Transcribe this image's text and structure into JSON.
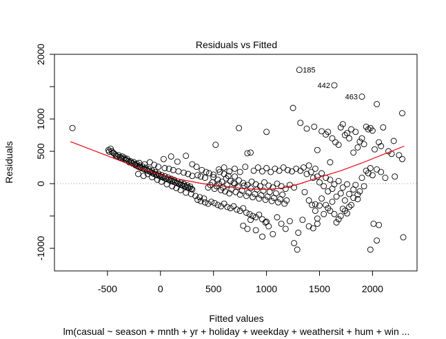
{
  "chart_data": {
    "type": "scatter",
    "title": "Residuals vs Fitted",
    "xlabel": "Fitted values",
    "ylabel": "Residuals",
    "subtitle": "lm(casual ~ season + mnth + yr + holiday + weekday + weathersit + hum + win ...",
    "xlim": [
      -1000,
      2420
    ],
    "ylim": [
      -1350,
      2000
    ],
    "x_ticks": [
      -500,
      0,
      500,
      1000,
      1500,
      2000
    ],
    "y_ticks": [
      -1000,
      -500,
      0,
      500,
      1000,
      1500,
      2000
    ],
    "y_tick_labels": [
      "-1000",
      "",
      "0",
      "500",
      "1000",
      "",
      "2000"
    ],
    "reference_line": 0,
    "grid": false,
    "point_style": "open-circle",
    "point_color": "#000000",
    "smooth_color": "#e8000b",
    "smooth_line": [
      [
        -850,
        650
      ],
      [
        -500,
        430
      ],
      [
        -200,
        240
      ],
      [
        0,
        140
      ],
      [
        200,
        60
      ],
      [
        400,
        0
      ],
      [
        600,
        -40
      ],
      [
        800,
        -80
      ],
      [
        1000,
        -90
      ],
      [
        1150,
        -70
      ],
      [
        1300,
        -10
      ],
      [
        1500,
        100
      ],
      [
        1700,
        200
      ],
      [
        1900,
        320
      ],
      [
        2100,
        450
      ],
      [
        2300,
        580
      ]
    ],
    "labeled_points": [
      {
        "label": "185",
        "x": 1310,
        "y": 1760
      },
      {
        "label": "442",
        "x": 1640,
        "y": 1520
      },
      {
        "label": "463",
        "x": 1900,
        "y": 1345
      }
    ],
    "points": [
      [
        -830,
        860
      ],
      [
        -490,
        520
      ],
      [
        -485,
        495
      ],
      [
        -470,
        540
      ],
      [
        -460,
        500
      ],
      [
        -450,
        480
      ],
      [
        -440,
        470
      ],
      [
        -430,
        455
      ],
      [
        -420,
        430
      ],
      [
        -405,
        420
      ],
      [
        -395,
        440
      ],
      [
        -380,
        410
      ],
      [
        -370,
        395
      ],
      [
        -360,
        420
      ],
      [
        -350,
        380
      ],
      [
        -340,
        400
      ],
      [
        -330,
        370
      ],
      [
        -320,
        360
      ],
      [
        -315,
        385
      ],
      [
        -300,
        350
      ],
      [
        -295,
        330
      ],
      [
        -280,
        345
      ],
      [
        -270,
        320
      ],
      [
        -262,
        310
      ],
      [
        -250,
        330
      ],
      [
        -240,
        300
      ],
      [
        -235,
        285
      ],
      [
        -225,
        310
      ],
      [
        -215,
        270
      ],
      [
        -205,
        260
      ],
      [
        -195,
        280
      ],
      [
        -190,
        250
      ],
      [
        -180,
        240
      ],
      [
        -170,
        265
      ],
      [
        -160,
        230
      ],
      [
        -150,
        220
      ],
      [
        -140,
        245
      ],
      [
        -130,
        210
      ],
      [
        -120,
        200
      ],
      [
        -110,
        225
      ],
      [
        -100,
        190
      ],
      [
        -90,
        175
      ],
      [
        -80,
        200
      ],
      [
        -70,
        160
      ],
      [
        -60,
        150
      ],
      [
        -50,
        180
      ],
      [
        -40,
        140
      ],
      [
        -30,
        130
      ],
      [
        -20,
        155
      ],
      [
        -10,
        120
      ],
      [
        0,
        110
      ],
      [
        10,
        135
      ],
      [
        20,
        100
      ],
      [
        30,
        90
      ],
      [
        40,
        115
      ],
      [
        50,
        80
      ],
      [
        60,
        70
      ],
      [
        70,
        95
      ],
      [
        80,
        60
      ],
      [
        90,
        50
      ],
      [
        100,
        75
      ],
      [
        110,
        40
      ],
      [
        120,
        30
      ],
      [
        130,
        55
      ],
      [
        140,
        20
      ],
      [
        150,
        10
      ],
      [
        160,
        35
      ],
      [
        170,
        0
      ],
      [
        180,
        -10
      ],
      [
        190,
        15
      ],
      [
        200,
        -20
      ],
      [
        210,
        -30
      ],
      [
        220,
        -5
      ],
      [
        230,
        -40
      ],
      [
        240,
        -50
      ],
      [
        250,
        -25
      ],
      [
        260,
        -60
      ],
      [
        270,
        -70
      ],
      [
        280,
        -45
      ],
      [
        290,
        -80
      ],
      [
        300,
        -90
      ],
      [
        -200,
        320
      ],
      [
        -150,
        300
      ],
      [
        -100,
        330
      ],
      [
        -60,
        290
      ],
      [
        -20,
        260
      ],
      [
        40,
        240
      ],
      [
        80,
        230
      ],
      [
        120,
        210
      ],
      [
        170,
        190
      ],
      [
        220,
        170
      ],
      [
        260,
        150
      ],
      [
        300,
        120
      ],
      [
        350,
        130
      ],
      [
        380,
        110
      ],
      [
        420,
        90
      ],
      [
        -210,
        150
      ],
      [
        -160,
        120
      ],
      [
        -120,
        150
      ],
      [
        -80,
        100
      ],
      [
        -30,
        60
      ],
      [
        10,
        30
      ],
      [
        60,
        -10
      ],
      [
        110,
        -40
      ],
      [
        150,
        -70
      ],
      [
        190,
        -100
      ],
      [
        240,
        -140
      ],
      [
        290,
        -160
      ],
      [
        330,
        -190
      ],
      [
        370,
        -210
      ],
      [
        410,
        -230
      ],
      [
        30,
        380
      ],
      [
        100,
        420
      ],
      [
        160,
        340
      ],
      [
        240,
        430
      ],
      [
        300,
        300
      ],
      [
        340,
        260
      ],
      [
        390,
        210
      ],
      [
        430,
        180
      ],
      [
        460,
        160
      ],
      [
        500,
        140
      ],
      [
        520,
        600
      ],
      [
        560,
        180
      ],
      [
        600,
        150
      ],
      [
        640,
        120
      ],
      [
        700,
        110
      ],
      [
        740,
        860
      ],
      [
        350,
        -250
      ],
      [
        380,
        -270
      ],
      [
        420,
        -290
      ],
      [
        450,
        -310
      ],
      [
        480,
        -280
      ],
      [
        510,
        -300
      ],
      [
        540,
        -330
      ],
      [
        570,
        -350
      ],
      [
        600,
        -310
      ],
      [
        630,
        -360
      ],
      [
        660,
        -380
      ],
      [
        690,
        -350
      ],
      [
        720,
        -400
      ],
      [
        750,
        -420
      ],
      [
        780,
        -380
      ],
      [
        810,
        -450
      ],
      [
        840,
        -470
      ],
      [
        870,
        -500
      ],
      [
        900,
        -520
      ],
      [
        930,
        -480
      ],
      [
        960,
        -550
      ],
      [
        990,
        -600
      ],
      [
        450,
        -60
      ],
      [
        470,
        -20
      ],
      [
        490,
        20
      ],
      [
        510,
        -80
      ],
      [
        530,
        -40
      ],
      [
        550,
        0
      ],
      [
        570,
        -100
      ],
      [
        590,
        -60
      ],
      [
        610,
        -120
      ],
      [
        630,
        -20
      ],
      [
        650,
        -150
      ],
      [
        670,
        -90
      ],
      [
        690,
        10
      ],
      [
        710,
        -130
      ],
      [
        730,
        -50
      ],
      [
        750,
        -170
      ],
      [
        770,
        -110
      ],
      [
        790,
        -30
      ],
      [
        810,
        -190
      ],
      [
        830,
        -140
      ],
      [
        850,
        -70
      ],
      [
        870,
        -210
      ],
      [
        890,
        -160
      ],
      [
        910,
        -90
      ],
      [
        930,
        -230
      ],
      [
        950,
        -180
      ],
      [
        970,
        -110
      ],
      [
        990,
        -250
      ],
      [
        1010,
        -200
      ],
      [
        1030,
        -130
      ],
      [
        1050,
        -270
      ],
      [
        1070,
        -220
      ],
      [
        1090,
        -150
      ],
      [
        1110,
        -290
      ],
      [
        1130,
        -240
      ],
      [
        1150,
        -170
      ],
      [
        1170,
        -310
      ],
      [
        1190,
        -260
      ],
      [
        500,
        100
      ],
      [
        540,
        60
      ],
      [
        580,
        30
      ],
      [
        620,
        80
      ],
      [
        660,
        40
      ],
      [
        700,
        0
      ],
      [
        740,
        50
      ],
      [
        780,
        10
      ],
      [
        820,
        -20
      ],
      [
        860,
        30
      ],
      [
        900,
        -10
      ],
      [
        940,
        -40
      ],
      [
        980,
        20
      ],
      [
        1020,
        -30
      ],
      [
        1060,
        -60
      ],
      [
        1100,
        0
      ],
      [
        1140,
        -40
      ],
      [
        1180,
        -80
      ],
      [
        1220,
        -20
      ],
      [
        1260,
        -60
      ],
      [
        550,
        220
      ],
      [
        600,
        250
      ],
      [
        650,
        190
      ],
      [
        700,
        230
      ],
      [
        750,
        180
      ],
      [
        800,
        260
      ],
      [
        820,
        470
      ],
      [
        850,
        480
      ],
      [
        880,
        200
      ],
      [
        920,
        250
      ],
      [
        960,
        190
      ],
      [
        1000,
        240
      ],
      [
        1040,
        180
      ],
      [
        1080,
        230
      ],
      [
        1120,
        200
      ],
      [
        1160,
        250
      ],
      [
        1200,
        210
      ],
      [
        1240,
        190
      ],
      [
        1280,
        230
      ],
      [
        780,
        -650
      ],
      [
        820,
        -700
      ],
      [
        850,
        -560
      ],
      [
        900,
        -720
      ],
      [
        960,
        -820
      ],
      [
        1000,
        -590
      ],
      [
        1020,
        -660
      ],
      [
        1060,
        -780
      ],
      [
        1100,
        -520
      ],
      [
        1140,
        -620
      ],
      [
        1180,
        -700
      ],
      [
        1220,
        -580
      ],
      [
        1260,
        -920
      ],
      [
        1290,
        -1020
      ],
      [
        1300,
        -760
      ],
      [
        1340,
        -560
      ],
      [
        1400,
        -660
      ],
      [
        1440,
        -690
      ],
      [
        1480,
        -620
      ],
      [
        1000,
        800
      ],
      [
        1250,
        1170
      ],
      [
        1320,
        940
      ],
      [
        1380,
        850
      ],
      [
        1450,
        880
      ],
      [
        1480,
        520
      ],
      [
        1520,
        810
      ],
      [
        1560,
        760
      ],
      [
        1580,
        800
      ],
      [
        1600,
        330
      ],
      [
        1620,
        700
      ],
      [
        1650,
        640
      ],
      [
        1680,
        600
      ],
      [
        1700,
        870
      ],
      [
        1720,
        920
      ],
      [
        1740,
        750
      ],
      [
        1760,
        780
      ],
      [
        1780,
        700
      ],
      [
        1800,
        840
      ],
      [
        1820,
        480
      ],
      [
        1840,
        800
      ],
      [
        1860,
        560
      ],
      [
        1880,
        650
      ],
      [
        1900,
        700
      ],
      [
        1920,
        610
      ],
      [
        1940,
        880
      ],
      [
        1960,
        840
      ],
      [
        1980,
        860
      ],
      [
        2000,
        820
      ],
      [
        2020,
        530
      ],
      [
        2040,
        1230
      ],
      [
        2060,
        640
      ],
      [
        2080,
        580
      ],
      [
        2100,
        870
      ],
      [
        2150,
        500
      ],
      [
        2200,
        660
      ],
      [
        2250,
        440
      ],
      [
        2280,
        1090
      ],
      [
        1320,
        200
      ],
      [
        1350,
        250
      ],
      [
        1380,
        150
      ],
      [
        1400,
        280
      ],
      [
        1420,
        180
      ],
      [
        1440,
        90
      ],
      [
        1460,
        230
      ],
      [
        1480,
        110
      ],
      [
        1500,
        20
      ],
      [
        1520,
        160
      ],
      [
        1540,
        -40
      ],
      [
        1560,
        90
      ],
      [
        1580,
        -120
      ],
      [
        1600,
        60
      ],
      [
        1620,
        -80
      ],
      [
        1640,
        -10
      ],
      [
        1660,
        -200
      ],
      [
        1680,
        40
      ],
      [
        1700,
        -150
      ],
      [
        1720,
        -60
      ],
      [
        1740,
        -260
      ],
      [
        1760,
        -10
      ],
      [
        1780,
        -160
      ],
      [
        1800,
        -330
      ],
      [
        1820,
        -90
      ],
      [
        1840,
        -20
      ],
      [
        1860,
        -240
      ],
      [
        1880,
        -120
      ],
      [
        1900,
        90
      ],
      [
        1920,
        -40
      ],
      [
        1940,
        200
      ],
      [
        1960,
        160
      ],
      [
        1980,
        240
      ],
      [
        2000,
        130
      ],
      [
        2040,
        220
      ],
      [
        2080,
        180
      ],
      [
        2120,
        90
      ],
      [
        2180,
        460
      ],
      [
        2210,
        110
      ],
      [
        2280,
        380
      ],
      [
        1360,
        -130
      ],
      [
        1400,
        -260
      ],
      [
        1430,
        -330
      ],
      [
        1460,
        -420
      ],
      [
        1480,
        -540
      ],
      [
        1500,
        -340
      ],
      [
        1540,
        -470
      ],
      [
        1580,
        -380
      ],
      [
        1620,
        -280
      ],
      [
        1660,
        -600
      ],
      [
        1700,
        -500
      ],
      [
        1740,
        -420
      ],
      [
        1780,
        -360
      ],
      [
        1820,
        -220
      ],
      [
        1860,
        -170
      ],
      [
        1980,
        -1020
      ],
      [
        2010,
        -620
      ],
      [
        2040,
        -880
      ],
      [
        2060,
        -640
      ],
      [
        2290,
        -830
      ],
      [
        1460,
        -320
      ],
      [
        1520,
        -230
      ],
      [
        1560,
        -330
      ],
      [
        1600,
        -420
      ],
      [
        1640,
        -470
      ],
      [
        1680,
        -550
      ],
      [
        1720,
        -390
      ],
      [
        1760,
        -460
      ]
    ]
  }
}
